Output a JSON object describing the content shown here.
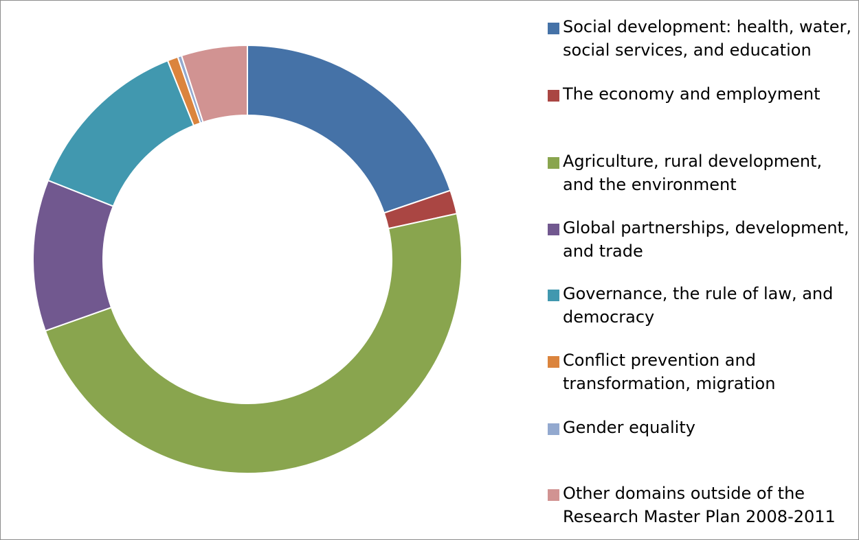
{
  "chart_data": {
    "type": "pie",
    "donut": true,
    "legend_position": "right",
    "categories": [
      "Social development: health, water, social services, and education",
      "The economy and employment",
      "Agriculture, rural development, and the environment",
      "Global partnerships, development, and trade",
      "Governance, the rule of law, and democracy",
      "Conflict prevention and transformation, migration",
      "Gender equality",
      "Other domains outside of the Research Master Plan 2008-2011"
    ],
    "values": [
      19.9,
      1.8,
      48.3,
      11.5,
      13.0,
      0.8,
      0.3,
      5.0
    ],
    "colors": [
      "#4572a7",
      "#aa4643",
      "#89a54e",
      "#71588f",
      "#4198af",
      "#db843d",
      "#93a9cf",
      "#d19392"
    ]
  },
  "legend": {
    "items": [
      {
        "label_line1": "Social development: health, water,",
        "label_line2": "social services, and education",
        "color": "#4572a7"
      },
      {
        "label_line1": "The economy and employment",
        "label_line2": "",
        "color": "#aa4643"
      },
      {
        "label_line1": "Agriculture, rural development,",
        "label_line2": "and the environment",
        "color": "#89a54e"
      },
      {
        "label_line1": "Global partnerships, development,",
        "label_line2": "and trade",
        "color": "#71588f"
      },
      {
        "label_line1": "Governance, the rule of law, and",
        "label_line2": "democracy",
        "color": "#4198af"
      },
      {
        "label_line1": "Conflict prevention and",
        "label_line2": "transformation, migration",
        "color": "#db843d"
      },
      {
        "label_line1": "Gender equality",
        "label_line2": "",
        "color": "#93a9cf"
      },
      {
        "label_line1": "Other domains outside of the",
        "label_line2": "Research Master Plan 2008-2011",
        "color": "#d19392"
      }
    ]
  }
}
